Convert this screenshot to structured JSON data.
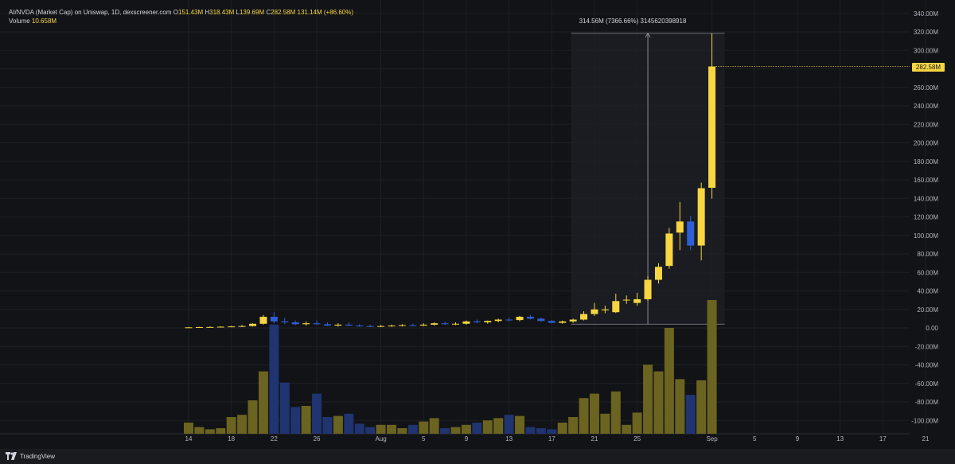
{
  "legend": {
    "title": "AI/NVDA (Market Cap) on Uniswap, 1D, dexscreener.com",
    "open_label": "O",
    "open": "151.43M",
    "high_label": "H",
    "high": "318.43M",
    "low_label": "L",
    "low": "139.69M",
    "close_label": "C",
    "close": "282.58M",
    "change": "131.14M (+86.60%)",
    "volume_label": "Volume",
    "volume": "10.658M"
  },
  "price_tag": "282.58M",
  "measure": {
    "label": "314.56M (7366.66%) 3145620398918"
  },
  "branding": {
    "name": "TradingView"
  },
  "colors": {
    "up": "#f7d642",
    "down": "#2f5fd8",
    "vol_up": "#6b6320",
    "vol_down": "#1f3470",
    "grid": "#1e2024",
    "text": "#b2b5be",
    "measure_fill": "#1d1f24"
  },
  "chart_data": {
    "type": "candlestick",
    "title": "AI/NVDA (Market Cap) on Uniswap, 1D, dexscreener.com",
    "y_axis_labels": [
      "340.00M",
      "320.00M",
      "300.00M",
      "280.00M",
      "260.00M",
      "240.00M",
      "220.00M",
      "200.00M",
      "180.00M",
      "160.00M",
      "140.00M",
      "120.00M",
      "100.00M",
      "80.00M",
      "60.00M",
      "40.00M",
      "20.00M",
      "0.00",
      "-20.00M",
      "-40.00M",
      "-60.00M",
      "-80.00M",
      "-100.00M"
    ],
    "y_axis_values": [
      340,
      320,
      300,
      280,
      260,
      240,
      220,
      200,
      180,
      160,
      140,
      120,
      100,
      80,
      60,
      40,
      20,
      0,
      -20,
      -40,
      -60,
      -80,
      -100
    ],
    "ylim": [
      -113,
      342
    ],
    "x_axis_labels": [
      {
        "label": "14",
        "day": 0
      },
      {
        "label": "18",
        "day": 4
      },
      {
        "label": "22",
        "day": 8
      },
      {
        "label": "26",
        "day": 12
      },
      {
        "label": "Aug",
        "day": 18
      },
      {
        "label": "5",
        "day": 22
      },
      {
        "label": "9",
        "day": 26
      },
      {
        "label": "13",
        "day": 30
      },
      {
        "label": "17",
        "day": 34
      },
      {
        "label": "21",
        "day": 38
      },
      {
        "label": "25",
        "day": 42
      },
      {
        "label": "Sep",
        "day": 49
      },
      {
        "label": "5",
        "day": 53
      },
      {
        "label": "9",
        "day": 57
      },
      {
        "label": "13",
        "day": 61
      },
      {
        "label": "17",
        "day": 65
      },
      {
        "label": "21",
        "day": 69
      }
    ],
    "x_unit": "day index from Jul 14",
    "candles": [
      {
        "day": 0,
        "o": 0.3,
        "h": 1.0,
        "l": 0.1,
        "c": 0.6,
        "v": 0.1
      },
      {
        "day": 1,
        "o": 0.5,
        "h": 1.2,
        "l": 0.2,
        "c": 0.9,
        "v": 0.06
      },
      {
        "day": 2,
        "o": 0.8,
        "h": 1.5,
        "l": 0.4,
        "c": 1.0,
        "v": 0.04
      },
      {
        "day": 3,
        "o": 1.0,
        "h": 1.8,
        "l": 0.6,
        "c": 1.3,
        "v": 0.05
      },
      {
        "day": 4,
        "o": 1.3,
        "h": 2.2,
        "l": 0.8,
        "c": 1.6,
        "v": 0.15
      },
      {
        "day": 5,
        "o": 1.6,
        "h": 3.0,
        "l": 1.0,
        "c": 2.0,
        "v": 0.17
      },
      {
        "day": 6,
        "o": 2.0,
        "h": 5.0,
        "l": 1.5,
        "c": 4.5,
        "v": 0.3
      },
      {
        "day": 7,
        "o": 4.5,
        "h": 14.0,
        "l": 3.5,
        "c": 12.0,
        "v": 0.56
      },
      {
        "day": 8,
        "o": 12.0,
        "h": 17.0,
        "l": 5.0,
        "c": 7.0,
        "v": 0.98
      },
      {
        "day": 9,
        "o": 7.0,
        "h": 11.0,
        "l": 4.0,
        "c": 6.0,
        "v": 0.46
      },
      {
        "day": 10,
        "o": 6.0,
        "h": 8.0,
        "l": 3.0,
        "c": 4.0,
        "v": 0.24
      },
      {
        "day": 11,
        "o": 4.0,
        "h": 7.0,
        "l": 2.5,
        "c": 5.0,
        "v": 0.25
      },
      {
        "day": 12,
        "o": 5.0,
        "h": 8.0,
        "l": 3.0,
        "c": 4.0,
        "v": 0.36
      },
      {
        "day": 13,
        "o": 4.0,
        "h": 6.0,
        "l": 2.0,
        "c": 2.5,
        "v": 0.15
      },
      {
        "day": 14,
        "o": 2.5,
        "h": 5.0,
        "l": 1.5,
        "c": 3.5,
        "v": 0.16
      },
      {
        "day": 15,
        "o": 3.5,
        "h": 6.0,
        "l": 2.0,
        "c": 2.5,
        "v": 0.18
      },
      {
        "day": 16,
        "o": 2.5,
        "h": 4.0,
        "l": 1.2,
        "c": 2.0,
        "v": 0.09
      },
      {
        "day": 17,
        "o": 2.0,
        "h": 3.5,
        "l": 1.0,
        "c": 1.5,
        "v": 0.06
      },
      {
        "day": 18,
        "o": 1.5,
        "h": 3.0,
        "l": 0.8,
        "c": 2.0,
        "v": 0.08
      },
      {
        "day": 19,
        "o": 2.0,
        "h": 3.5,
        "l": 1.2,
        "c": 2.5,
        "v": 0.08
      },
      {
        "day": 20,
        "o": 2.5,
        "h": 4.0,
        "l": 1.5,
        "c": 3.0,
        "v": 0.05
      },
      {
        "day": 21,
        "o": 3.0,
        "h": 4.5,
        "l": 2.0,
        "c": 2.5,
        "v": 0.08
      },
      {
        "day": 22,
        "o": 2.5,
        "h": 5.0,
        "l": 2.0,
        "c": 3.5,
        "v": 0.11
      },
      {
        "day": 23,
        "o": 3.5,
        "h": 6.0,
        "l": 2.5,
        "c": 5.0,
        "v": 0.14
      },
      {
        "day": 24,
        "o": 5.0,
        "h": 7.0,
        "l": 3.5,
        "c": 4.0,
        "v": 0.05
      },
      {
        "day": 25,
        "o": 4.0,
        "h": 6.0,
        "l": 3.0,
        "c": 4.5,
        "v": 0.06
      },
      {
        "day": 26,
        "o": 4.5,
        "h": 8.0,
        "l": 3.5,
        "c": 7.0,
        "v": 0.08
      },
      {
        "day": 27,
        "o": 7.0,
        "h": 9.0,
        "l": 5.0,
        "c": 6.0,
        "v": 0.1
      },
      {
        "day": 28,
        "o": 6.0,
        "h": 8.0,
        "l": 4.5,
        "c": 7.5,
        "v": 0.12
      },
      {
        "day": 29,
        "o": 7.5,
        "h": 10.0,
        "l": 6.0,
        "c": 9.0,
        "v": 0.14
      },
      {
        "day": 30,
        "o": 9.0,
        "h": 11.0,
        "l": 7.0,
        "c": 8.5,
        "v": 0.17
      },
      {
        "day": 31,
        "o": 8.5,
        "h": 13.0,
        "l": 7.0,
        "c": 12.0,
        "v": 0.16
      },
      {
        "day": 32,
        "o": 12.0,
        "h": 14.0,
        "l": 9.0,
        "c": 10.0,
        "v": 0.06
      },
      {
        "day": 33,
        "o": 10.0,
        "h": 11.0,
        "l": 6.5,
        "c": 7.5,
        "v": 0.05
      },
      {
        "day": 34,
        "o": 7.5,
        "h": 8.5,
        "l": 5.0,
        "c": 5.5,
        "v": 0.04
      },
      {
        "day": 35,
        "o": 5.5,
        "h": 8.0,
        "l": 4.5,
        "c": 7.0,
        "v": 0.1
      },
      {
        "day": 36,
        "o": 7.0,
        "h": 10.0,
        "l": 5.5,
        "c": 9.0,
        "v": 0.15
      },
      {
        "day": 37,
        "o": 9.0,
        "h": 18.0,
        "l": 8.0,
        "c": 15.0,
        "v": 0.32
      },
      {
        "day": 38,
        "o": 15.0,
        "h": 27.0,
        "l": 13.0,
        "c": 20.0,
        "v": 0.36
      },
      {
        "day": 39,
        "o": 19.0,
        "h": 24.0,
        "l": 16.0,
        "c": 20.0,
        "v": 0.18
      },
      {
        "day": 40,
        "o": 17.0,
        "h": 37.0,
        "l": 16.0,
        "c": 29.0,
        "v": 0.38
      },
      {
        "day": 41,
        "o": 30.0,
        "h": 35.0,
        "l": 26.0,
        "c": 30.5,
        "v": 0.08
      },
      {
        "day": 42,
        "o": 27.0,
        "h": 38.0,
        "l": 24.0,
        "c": 31.0,
        "v": 0.19
      },
      {
        "day": 43,
        "o": 31.0,
        "h": 56.0,
        "l": 29.0,
        "c": 52.0,
        "v": 0.62
      },
      {
        "day": 44,
        "o": 52.0,
        "h": 70.0,
        "l": 48.0,
        "c": 66.0,
        "v": 0.56
      },
      {
        "day": 45,
        "o": 67.0,
        "h": 108.0,
        "l": 64.0,
        "c": 102.0,
        "v": 0.95
      },
      {
        "day": 46,
        "o": 103.0,
        "h": 136.0,
        "l": 84.0,
        "c": 115.0,
        "v": 0.49
      },
      {
        "day": 47,
        "o": 115.0,
        "h": 121.0,
        "l": 84.0,
        "c": 89.0,
        "v": 0.35
      },
      {
        "day": 48,
        "o": 89.0,
        "h": 157.0,
        "l": 73.0,
        "c": 151.0,
        "v": 0.48
      },
      {
        "day": 49,
        "o": 151.43,
        "h": 318.43,
        "l": 139.69,
        "c": 282.58,
        "v": 1.2
      }
    ],
    "last_close": 282.58,
    "measure_range": {
      "day_start": 37,
      "day_end": 49,
      "low": 4.0,
      "high": 318.43
    }
  }
}
